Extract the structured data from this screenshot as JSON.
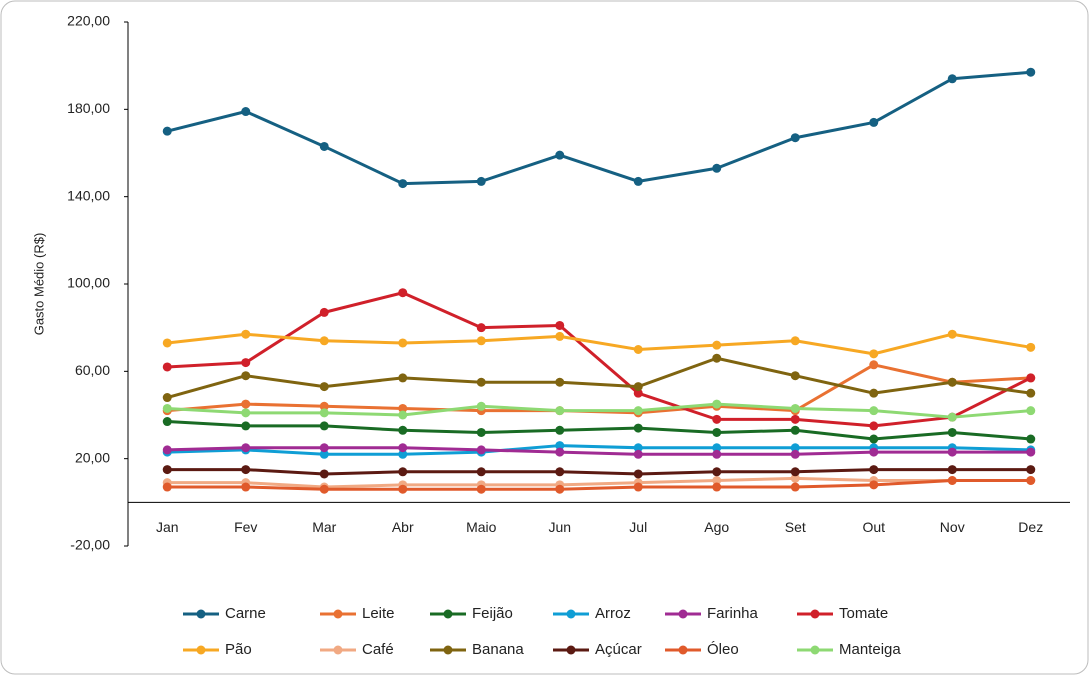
{
  "chart_data": {
    "type": "line",
    "y_label": "Gasto Médio (R$)",
    "categories": [
      "Jan",
      "Fev",
      "Mar",
      "Abr",
      "Maio",
      "Jun",
      "Jul",
      "Ago",
      "Set",
      "Out",
      "Nov",
      "Dez"
    ],
    "ylim": [
      -20,
      220
    ],
    "yticks": [
      {
        "value": -20,
        "label": "-20,00"
      },
      {
        "value": 20,
        "label": "20,00"
      },
      {
        "value": 60,
        "label": "60,00"
      },
      {
        "value": 100,
        "label": "100,00"
      },
      {
        "value": 140,
        "label": "140,00"
      },
      {
        "value": 180,
        "label": "180,00"
      },
      {
        "value": 220,
        "label": "220,00"
      }
    ],
    "grid": false,
    "legend": "bottom",
    "series": [
      {
        "name": "Carne",
        "color": "#156082",
        "values": [
          170,
          179,
          163,
          146,
          147,
          159,
          147,
          153,
          167,
          174,
          194,
          197
        ]
      },
      {
        "name": "Leite",
        "color": "#e97132",
        "values": [
          42,
          45,
          44,
          43,
          42,
          42,
          41,
          44,
          42,
          63,
          55,
          57
        ]
      },
      {
        "name": "Feijão",
        "color": "#196b24",
        "values": [
          37,
          35,
          35,
          33,
          32,
          33,
          34,
          32,
          33,
          29,
          32,
          29
        ]
      },
      {
        "name": "Arroz",
        "color": "#0f9ed5",
        "values": [
          23,
          24,
          22,
          22,
          23,
          26,
          25,
          25,
          25,
          25,
          25,
          24
        ]
      },
      {
        "name": "Farinha",
        "color": "#a02b93",
        "values": [
          24,
          25,
          25,
          25,
          24,
          23,
          22,
          22,
          22,
          23,
          23,
          23
        ]
      },
      {
        "name": "Tomate",
        "color": "#d0202a",
        "values": [
          62,
          64,
          87,
          96,
          80,
          81,
          50,
          38,
          38,
          35,
          39,
          57
        ]
      },
      {
        "name": "Pão",
        "color": "#f7a823",
        "values": [
          73,
          77,
          74,
          73,
          74,
          76,
          70,
          72,
          74,
          68,
          77,
          71
        ]
      },
      {
        "name": "Café",
        "color": "#f1a983",
        "values": [
          9,
          9,
          7,
          8,
          8,
          8,
          9,
          10,
          11,
          10,
          10,
          10
        ]
      },
      {
        "name": "Banana",
        "color": "#7f6410",
        "values": [
          48,
          58,
          53,
          57,
          55,
          55,
          53,
          66,
          58,
          50,
          55,
          50
        ]
      },
      {
        "name": "Açúcar",
        "color": "#5b1a12",
        "values": [
          15,
          15,
          13,
          14,
          14,
          14,
          13,
          14,
          14,
          15,
          15,
          15
        ]
      },
      {
        "name": "Óleo",
        "color": "#e05a2b",
        "values": [
          7,
          7,
          6,
          6,
          6,
          6,
          7,
          7,
          7,
          8,
          10,
          10
        ]
      },
      {
        "name": "Manteiga",
        "color": "#8ed973",
        "values": [
          43,
          41,
          41,
          40,
          44,
          42,
          42,
          45,
          43,
          42,
          39,
          42
        ]
      }
    ]
  }
}
